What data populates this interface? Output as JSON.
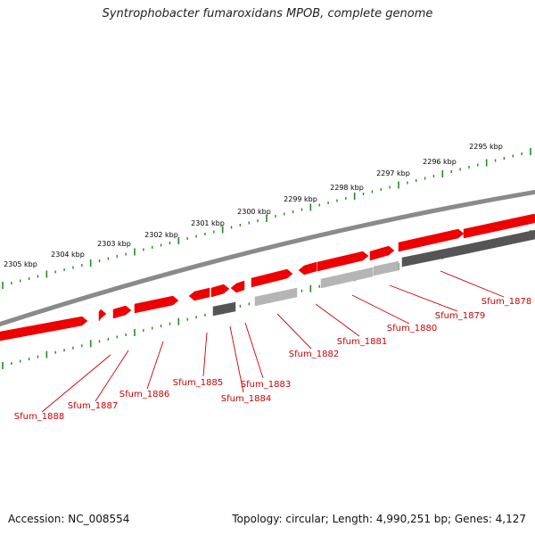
{
  "title": "Syntrophobacter fumaroxidans MPOB, complete genome",
  "accession": "Accession: NC_008554",
  "topology": "Topology: circular; Length: 4,990,251 bp; Genes: 4,127",
  "colors": {
    "backbone": "#8a8a8a",
    "forward_gene": "#ee0000",
    "reverse_gene_dark": "#555555",
    "reverse_gene_light": "#b5b5b5",
    "tick": "#228b22",
    "label": "#cc0000"
  },
  "kbp_labels": [
    "2295 kbp",
    "2296 kbp",
    "2297 kbp",
    "2298 kbp",
    "2299 kbp",
    "2300 kbp",
    "2301 kbp",
    "2302 kbp",
    "2303 kbp",
    "2304 kbp",
    "2305 kbp"
  ],
  "gene_labels": [
    "Sfum_1878",
    "Sfum_1879",
    "Sfum_1880",
    "Sfum_1881",
    "Sfum_1882",
    "Sfum_1883",
    "Sfum_1884",
    "Sfum_1885",
    "Sfum_1886",
    "Sfum_1887",
    "Sfum_1888"
  ]
}
